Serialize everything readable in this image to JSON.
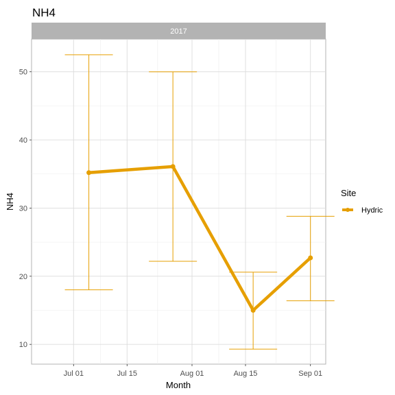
{
  "chart_data": {
    "type": "line",
    "title": "NH4",
    "facet_label": "2017",
    "xlabel": "Month",
    "ylabel": "NH4",
    "x_tick_labels": [
      "Jul 01",
      "Jul 15",
      "Aug 01",
      "Aug 15",
      "Sep 01"
    ],
    "x_ticks": [
      "2017-07-01",
      "2017-07-15",
      "2017-08-01",
      "2017-08-15",
      "2017-09-01"
    ],
    "xlim": [
      "2017-06-20",
      "2017-09-05"
    ],
    "y_ticks": [
      10,
      20,
      30,
      40,
      50
    ],
    "ylim": [
      7.1,
      54.8
    ],
    "grid": true,
    "legend": {
      "title": "Site",
      "position": "right"
    },
    "series": [
      {
        "name": "Hydric",
        "color": "#E69F00",
        "points": [
          {
            "x": "2017-07-05",
            "y": 35.2,
            "ymin": 18.0,
            "ymax": 52.5
          },
          {
            "x": "2017-07-27",
            "y": 36.1,
            "ymin": 22.2,
            "ymax": 50.0
          },
          {
            "x": "2017-08-17",
            "y": 15.0,
            "ymin": 9.3,
            "ymax": 20.6
          },
          {
            "x": "2017-09-01",
            "y": 22.7,
            "ymin": 16.4,
            "ymax": 28.8
          }
        ]
      }
    ]
  }
}
